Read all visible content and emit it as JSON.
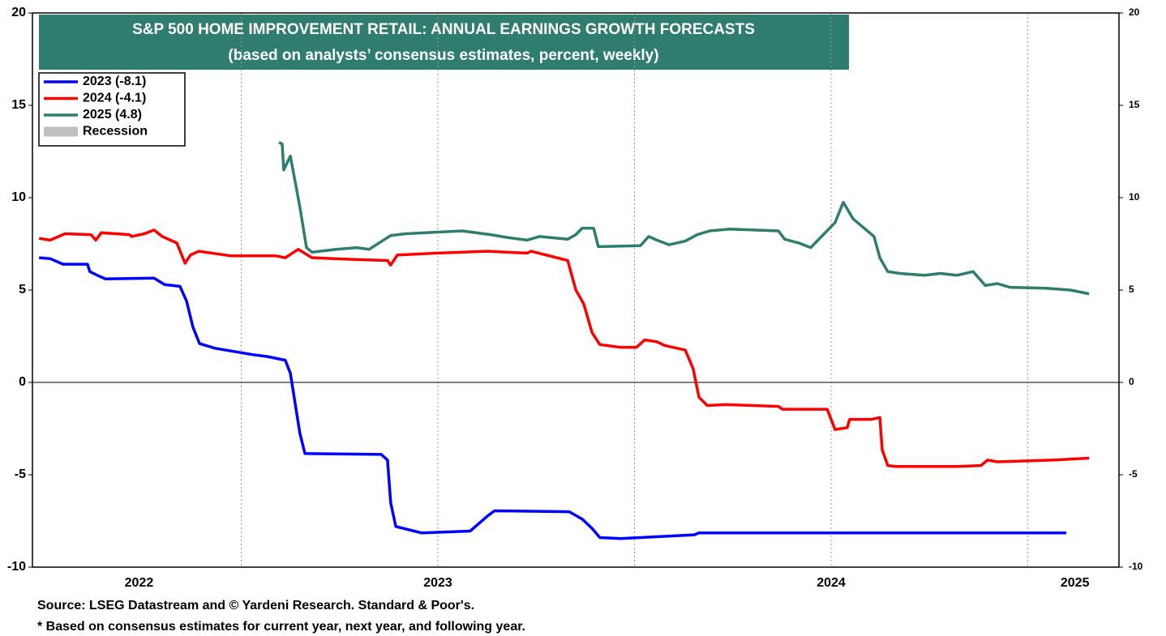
{
  "chart_data": {
    "type": "line",
    "title": "S&P 500 HOME IMPROVEMENT RETAIL: ANNUAL EARNINGS GROWTH FORECASTS",
    "subtitle": "(based on analysts’ consensus estimates, percent, weekly)",
    "title_color": "#2e7d6e",
    "notes": [
      "Source: LSEG Datastream and © Yardeni Research. Standard & Poor's.",
      "* Based on consensus estimates for current year, next year, and following year."
    ],
    "xlim": [
      2021.969,
      2024.732
    ],
    "xticks": [
      {
        "value": 2022.24,
        "label": "2022"
      },
      {
        "value": 2023.0,
        "label": "2023"
      },
      {
        "value": 2024.0,
        "label": "2024"
      },
      {
        "value": 2024.62,
        "label": "2025"
      }
    ],
    "xgrid": [
      2022.5,
      2023.0,
      2023.5,
      2024.0,
      2024.5
    ],
    "ylim": [
      -10,
      20
    ],
    "yticks": [
      -10,
      -5,
      0,
      5,
      10,
      15,
      20
    ],
    "legend": "upper left",
    "recession": {
      "name": "Recession",
      "color": "#c0c0c0"
    },
    "series": [
      {
        "name": "2023 (-8.1)",
        "color": "#0000ff",
        "x": [
          2021.986,
          2022.014,
          2022.047,
          2022.109,
          2022.115,
          2022.134,
          2022.155,
          2022.278,
          2022.305,
          2022.344,
          2022.361,
          2022.377,
          2022.394,
          2022.433,
          2022.474,
          2022.53,
          2022.567,
          2022.612,
          2022.625,
          2022.649,
          2022.662,
          2022.856,
          2022.872,
          2022.88,
          2022.893,
          2022.959,
          2023.082,
          2023.128,
          2023.144,
          2023.334,
          2023.367,
          2023.392,
          2023.412,
          2023.464,
          2023.515,
          2023.652,
          2023.664,
          2024.598
        ],
        "values": [
          6.75,
          6.7,
          6.4,
          6.4,
          6.0,
          5.8,
          5.6,
          5.65,
          5.3,
          5.2,
          4.4,
          3.0,
          2.1,
          1.85,
          1.7,
          1.5,
          1.4,
          1.2,
          0.5,
          -2.75,
          -3.85,
          -3.9,
          -4.2,
          -6.5,
          -7.8,
          -8.15,
          -8.05,
          -7.2,
          -6.95,
          -7.0,
          -7.4,
          -7.9,
          -8.4,
          -8.45,
          -8.4,
          -8.25,
          -8.15,
          -8.15
        ]
      },
      {
        "name": "2024 (-4.1)",
        "color": "#ff0000",
        "x": [
          2021.986,
          2022.014,
          2022.052,
          2022.118,
          2022.13,
          2022.144,
          2022.216,
          2022.221,
          2022.254,
          2022.278,
          2022.299,
          2022.336,
          2022.357,
          2022.371,
          2022.392,
          2022.474,
          2022.588,
          2022.612,
          2022.645,
          2022.68,
          2022.794,
          2022.872,
          2022.88,
          2022.897,
          2023.0,
          2023.124,
          2023.227,
          2023.237,
          2023.33,
          2023.351,
          2023.371,
          2023.392,
          2023.412,
          2023.464,
          2023.505,
          2023.526,
          2023.557,
          2023.577,
          2023.629,
          2023.649,
          2023.664,
          2023.685,
          2023.732,
          2023.866,
          2023.876,
          2023.99,
          2024.01,
          2024.041,
          2024.047,
          2024.103,
          2024.124,
          2024.13,
          2024.144,
          2024.165,
          2024.32,
          2024.381,
          2024.398,
          2024.423,
          2024.567,
          2024.656
        ],
        "values": [
          7.8,
          7.7,
          8.05,
          8.0,
          7.7,
          8.1,
          8.0,
          7.9,
          8.05,
          8.25,
          7.9,
          7.55,
          6.45,
          6.9,
          7.1,
          6.85,
          6.85,
          6.75,
          7.2,
          6.75,
          6.65,
          6.6,
          6.35,
          6.9,
          7.0,
          7.1,
          7.0,
          7.1,
          6.6,
          5.0,
          4.25,
          2.7,
          2.05,
          1.9,
          1.9,
          2.3,
          2.2,
          2.0,
          1.75,
          0.75,
          -0.8,
          -1.25,
          -1.2,
          -1.3,
          -1.45,
          -1.45,
          -2.55,
          -2.45,
          -2.0,
          -2.0,
          -1.9,
          -3.65,
          -4.5,
          -4.55,
          -4.55,
          -4.5,
          -4.2,
          -4.3,
          -4.2,
          -4.1
        ]
      },
      {
        "name": "2025 (4.8)",
        "color": "#2e7d6e",
        "x": [
          2022.596,
          2022.604,
          2022.608,
          2022.625,
          2022.649,
          2022.666,
          2022.68,
          2022.742,
          2022.794,
          2022.825,
          2022.88,
          2022.918,
          2022.969,
          2023.062,
          2023.134,
          2023.175,
          2023.227,
          2023.258,
          2023.33,
          2023.351,
          2023.367,
          2023.396,
          2023.408,
          2023.515,
          2023.536,
          2023.557,
          2023.588,
          2023.629,
          2023.66,
          2023.691,
          2023.742,
          2023.866,
          2023.882,
          2023.918,
          2023.948,
          2024.01,
          2024.031,
          2024.056,
          2024.109,
          2024.124,
          2024.144,
          2024.175,
          2024.237,
          2024.278,
          2024.32,
          2024.361,
          2024.392,
          2024.423,
          2024.454,
          2024.546,
          2024.608,
          2024.656
        ],
        "values": [
          13.0,
          12.9,
          11.5,
          12.25,
          9.5,
          7.3,
          7.05,
          7.2,
          7.3,
          7.2,
          7.95,
          8.05,
          8.1,
          8.2,
          8.0,
          7.85,
          7.7,
          7.9,
          7.75,
          8.0,
          8.35,
          8.35,
          7.35,
          7.4,
          7.9,
          7.7,
          7.45,
          7.65,
          8.0,
          8.2,
          8.3,
          8.2,
          7.75,
          7.55,
          7.3,
          8.65,
          9.75,
          8.85,
          7.9,
          6.75,
          6.0,
          5.9,
          5.8,
          5.9,
          5.8,
          6.0,
          5.25,
          5.35,
          5.15,
          5.1,
          5.0,
          4.8
        ]
      }
    ]
  }
}
